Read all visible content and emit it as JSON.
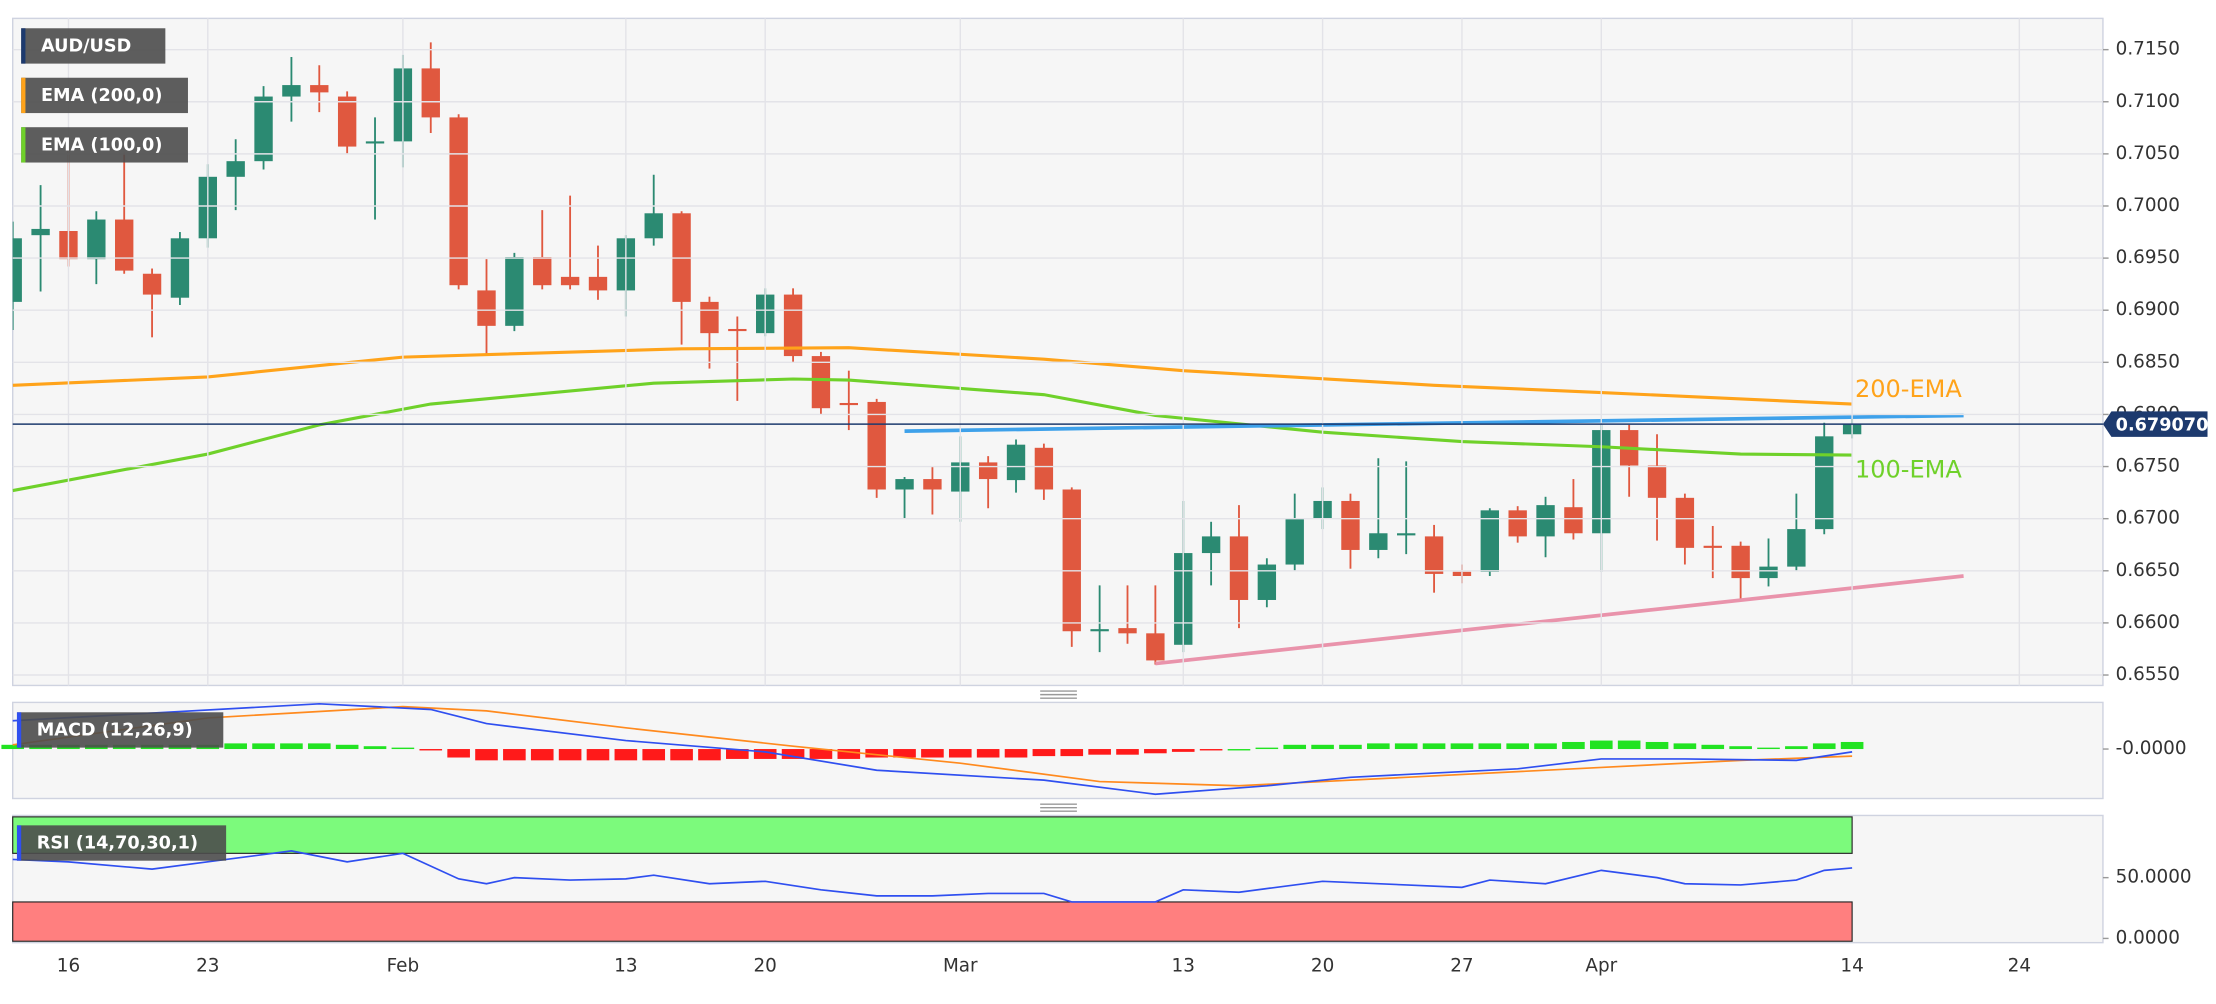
{
  "chart_data": [
    {
      "type": "candlestick",
      "xlim": [
        0,
        75
      ],
      "xticks": [
        {
          "value": 2,
          "label": "16"
        },
        {
          "value": 7,
          "label": "23"
        },
        {
          "value": 14,
          "label": "Feb"
        },
        {
          "value": 22,
          "label": "13"
        },
        {
          "value": 27,
          "label": "20"
        },
        {
          "value": 34,
          "label": "Mar"
        },
        {
          "value": 42,
          "label": "13"
        },
        {
          "value": 47,
          "label": "20"
        },
        {
          "value": 52,
          "label": "27"
        },
        {
          "value": 57,
          "label": "Apr"
        },
        {
          "value": 66,
          "label": "14"
        },
        {
          "value": 72,
          "label": "24"
        }
      ],
      "ylim": [
        0.654,
        0.718
      ],
      "yticks": [
        {
          "value": 0.655,
          "label": "0.6550"
        },
        {
          "value": 0.66,
          "label": "0.6600"
        },
        {
          "value": 0.665,
          "label": "0.6650"
        },
        {
          "value": 0.67,
          "label": "0.6700"
        },
        {
          "value": 0.675,
          "label": "0.6750"
        },
        {
          "value": 0.68,
          "label": "0.6800"
        },
        {
          "value": 0.685,
          "label": "0.6850"
        },
        {
          "value": 0.69,
          "label": "0.6900"
        },
        {
          "value": 0.695,
          "label": "0.6950"
        },
        {
          "value": 0.7,
          "label": "0.7000"
        },
        {
          "value": 0.705,
          "label": "0.7050"
        },
        {
          "value": 0.71,
          "label": "0.7100"
        },
        {
          "value": 0.715,
          "label": "0.7150"
        }
      ],
      "grid": true,
      "series": [
        {
          "name": "AUD/USD",
          "up_color": "#2b8a72",
          "down_color": "#e0583f",
          "open": [
            0.6908,
            0.6972,
            0.6976,
            0.6949,
            0.6987,
            0.6935,
            0.6912,
            0.6969,
            0.7028,
            0.7043,
            0.7105,
            0.7116,
            0.7105,
            0.706,
            0.7062,
            0.7132,
            0.7085,
            0.6919,
            0.6885,
            0.6951,
            0.6932,
            0.6932,
            0.6919,
            0.6969,
            0.6993,
            0.6908,
            0.6882,
            0.6878,
            0.6915,
            0.6856,
            0.6811,
            0.6812,
            0.6728,
            0.6738,
            0.6726,
            0.6754,
            0.6737,
            0.6768,
            0.6728,
            0.6592,
            0.6595,
            0.659,
            0.6579,
            0.6667,
            0.6683,
            0.6622,
            0.6656,
            0.67,
            0.6717,
            0.667,
            0.6684,
            0.6683,
            0.6649,
            0.6649,
            0.6708,
            0.6683,
            0.6711,
            0.6686,
            0.6785,
            0.6751,
            0.672,
            0.6674,
            0.6674,
            0.6643,
            0.6654,
            0.669,
            0.6781
          ],
          "high": [
            0.6985,
            0.702,
            0.7057,
            0.6995,
            0.7051,
            0.694,
            0.6975,
            0.704,
            0.7064,
            0.7115,
            0.7143,
            0.7135,
            0.711,
            0.7085,
            0.7145,
            0.7157,
            0.7088,
            0.6949,
            0.6955,
            0.6996,
            0.701,
            0.6962,
            0.6972,
            0.703,
            0.6995,
            0.6913,
            0.6894,
            0.6921,
            0.6921,
            0.686,
            0.6842,
            0.6815,
            0.674,
            0.675,
            0.6779,
            0.676,
            0.6776,
            0.6772,
            0.673,
            0.6636,
            0.6636,
            0.6636,
            0.6717,
            0.6697,
            0.6713,
            0.6662,
            0.6724,
            0.673,
            0.6724,
            0.6758,
            0.6755,
            0.6694,
            0.6656,
            0.671,
            0.6712,
            0.6721,
            0.6738,
            0.679,
            0.679,
            0.6781,
            0.6724,
            0.6693,
            0.6678,
            0.6681,
            0.6724,
            0.6792,
            0.6796
          ],
          "low": [
            0.6881,
            0.6918,
            0.6942,
            0.6925,
            0.6935,
            0.6874,
            0.6905,
            0.696,
            0.6996,
            0.7035,
            0.7081,
            0.709,
            0.705,
            0.6987,
            0.7037,
            0.707,
            0.692,
            0.6857,
            0.688,
            0.692,
            0.692,
            0.691,
            0.6894,
            0.6962,
            0.6867,
            0.6844,
            0.6813,
            0.6875,
            0.685,
            0.68,
            0.6785,
            0.672,
            0.67,
            0.6704,
            0.6697,
            0.671,
            0.6725,
            0.6718,
            0.6577,
            0.6572,
            0.658,
            0.656,
            0.6572,
            0.6636,
            0.6595,
            0.6615,
            0.665,
            0.669,
            0.6652,
            0.6662,
            0.6666,
            0.6629,
            0.6638,
            0.6645,
            0.6677,
            0.6663,
            0.668,
            0.6649,
            0.6721,
            0.6679,
            0.6656,
            0.6643,
            0.6622,
            0.6635,
            0.665,
            0.6685,
            0.6777
          ],
          "close": [
            0.6969,
            0.6978,
            0.6949,
            0.6987,
            0.6938,
            0.6915,
            0.6969,
            0.7028,
            0.7043,
            0.7105,
            0.7116,
            0.7109,
            0.7057,
            0.7062,
            0.7132,
            0.7085,
            0.6924,
            0.6885,
            0.6951,
            0.6924,
            0.6924,
            0.6919,
            0.6969,
            0.6993,
            0.6908,
            0.6878,
            0.688,
            0.6915,
            0.6856,
            0.6806,
            0.6809,
            0.6728,
            0.6738,
            0.6728,
            0.6754,
            0.6738,
            0.6771,
            0.6728,
            0.6592,
            0.6594,
            0.659,
            0.6564,
            0.6667,
            0.6683,
            0.6622,
            0.6656,
            0.67,
            0.6717,
            0.667,
            0.6686,
            0.6686,
            0.6647,
            0.6645,
            0.6708,
            0.6683,
            0.6713,
            0.6686,
            0.6785,
            0.6751,
            0.672,
            0.6672,
            0.6673,
            0.6643,
            0.6654,
            0.669,
            0.6779,
            0.6791
          ]
        },
        {
          "name": "EMA (200,0)",
          "color": "#ffa31a",
          "x": [
            0,
            7,
            14,
            24,
            30,
            37,
            42,
            51,
            57,
            66
          ],
          "values": [
            0.6828,
            0.6836,
            0.6855,
            0.6863,
            0.6864,
            0.6853,
            0.6842,
            0.6828,
            0.6821,
            0.681
          ]
        },
        {
          "name": "EMA (100,0)",
          "color": "#6fd12a",
          "x": [
            0,
            7,
            11,
            15,
            23,
            28,
            30,
            37,
            41,
            47,
            52,
            57,
            62,
            66
          ],
          "values": [
            0.6727,
            0.6762,
            0.679,
            0.681,
            0.683,
            0.6834,
            0.6833,
            0.6819,
            0.6799,
            0.6783,
            0.6774,
            0.6769,
            0.6762,
            0.6761
          ]
        }
      ],
      "annotations": [
        {
          "text": "200-EMA",
          "color": "#ffa31a"
        },
        {
          "text": "100-EMA",
          "color": "#6fd12a"
        }
      ],
      "trendlines": [
        {
          "color": "#3ea1ea",
          "x": [
            32,
            70
          ],
          "values": [
            0.6784,
            0.6799
          ]
        },
        {
          "color": "#e993ab",
          "x": [
            41,
            70
          ],
          "values": [
            0.6561,
            0.6645
          ]
        }
      ],
      "last_price": {
        "value": 0.67907,
        "label": "0.679070"
      }
    },
    {
      "type": "macd",
      "title": "MACD (12,26,9)",
      "ylim": [
        -0.0035,
        0.0033
      ],
      "yticks": [
        {
          "value": 0,
          "label": "-0.0000"
        }
      ],
      "macd": {
        "color": "#2f4ff0",
        "x": [
          0,
          11,
          15,
          17,
          22,
          27,
          31,
          37,
          41,
          45,
          48,
          54,
          57,
          60,
          64,
          66
        ],
        "values": [
          0.002,
          0.0032,
          0.0028,
          0.0018,
          0.0006,
          -0.0002,
          -0.0015,
          -0.0022,
          -0.0032,
          -0.0026,
          -0.002,
          -0.0014,
          -0.0007,
          -0.0007,
          -0.0008,
          -0.0002
        ]
      },
      "signal": {
        "color": "#ff8a1e",
        "x": [
          0,
          7,
          14,
          17,
          22,
          28,
          34,
          39,
          44,
          50,
          57,
          62,
          66
        ],
        "values": [
          0.0003,
          0.0022,
          0.003,
          0.0027,
          0.0015,
          0.0002,
          -0.001,
          -0.0023,
          -0.0026,
          -0.002,
          -0.0013,
          -0.0008,
          -0.0005
        ]
      },
      "histogram": {
        "up_color": "#22e322",
        "down_color": "#ff1a1a",
        "values": [
          0.0003,
          0.0003,
          0.0003,
          0.0003,
          0.0003,
          0.0003,
          0.0003,
          0.0003,
          0.0004,
          0.0004,
          0.0004,
          0.0004,
          0.0003,
          0.0002,
          0.0001,
          -0.0001,
          -0.0006,
          -0.0008,
          -0.0008,
          -0.0008,
          -0.0008,
          -0.0008,
          -0.0008,
          -0.0008,
          -0.0008,
          -0.0008,
          -0.0007,
          -0.0007,
          -0.0007,
          -0.0007,
          -0.0007,
          -0.0006,
          -0.0006,
          -0.0006,
          -0.0006,
          -0.0006,
          -0.0006,
          -0.0005,
          -0.0005,
          -0.0004,
          -0.0004,
          -0.0003,
          -0.0002,
          -0.0001,
          0,
          0.0001,
          0.0003,
          0.0003,
          0.0003,
          0.0004,
          0.0004,
          0.0004,
          0.0004,
          0.0004,
          0.0004,
          0.0004,
          0.0005,
          0.0006,
          0.0006,
          0.0005,
          0.0004,
          0.0003,
          0.0002,
          0.0001,
          0.0002,
          0.0004,
          0.0005
        ]
      }
    },
    {
      "type": "rsi",
      "title": "RSI (14,70,30,1)",
      "ylim": [
        0,
        100
      ],
      "yticks": [
        {
          "value": 50,
          "label": "50.0000"
        },
        {
          "value": 0,
          "label": "0.0000"
        }
      ],
      "overbought": 70,
      "oversold": 30,
      "overbought_color": "#7cfa7c",
      "oversold_color": "#ff7f7f",
      "line": {
        "color": "#2f4ff0",
        "x": [
          0,
          2,
          5,
          7,
          10,
          12,
          14,
          16,
          17,
          18,
          20,
          22,
          23,
          25,
          27,
          29,
          31,
          33,
          35,
          37,
          38,
          40,
          41,
          42,
          44,
          47,
          50,
          52,
          53,
          55,
          57,
          59,
          60,
          62,
          64,
          65,
          66
        ],
        "values": [
          65,
          63,
          57,
          63,
          72,
          63,
          70,
          49,
          45,
          50,
          48,
          49,
          52,
          45,
          47,
          40,
          35,
          35,
          37,
          37,
          30,
          30,
          30,
          40,
          38,
          47,
          44,
          42,
          48,
          45,
          56,
          50,
          45,
          44,
          48,
          56,
          58
        ]
      }
    }
  ]
}
